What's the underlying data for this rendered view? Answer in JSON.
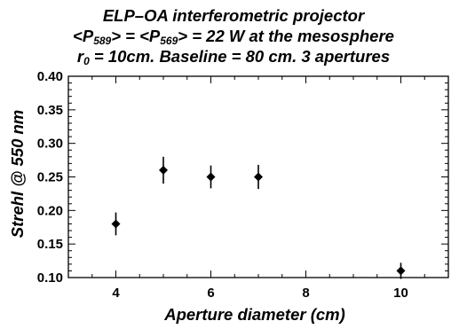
{
  "title": {
    "line1": "ELP–OA interferometric projector",
    "line2_pre": "<P",
    "line2_sub1": "589",
    "line2_mid": "> = <P",
    "line2_sub2": "569",
    "line2_post": "> = 22 W at the mesosphere",
    "line3_pre": "r",
    "line3_sub": "0",
    "line3_post": " = 10cm. Baseline = 80 cm. 3 apertures"
  },
  "chart_data": {
    "type": "scatter",
    "xlabel": "Aperture diameter (cm)",
    "ylabel": "Strehl  @ 550 nm",
    "xlim": [
      3,
      11
    ],
    "ylim": [
      0.1,
      0.4
    ],
    "xticks": [
      4,
      6,
      8,
      10
    ],
    "yticks": [
      0.1,
      0.15,
      0.2,
      0.25,
      0.3,
      0.35,
      0.4
    ],
    "ytick_labels": [
      "0.10",
      "0.15",
      "0.20",
      "0.25",
      "0.30",
      "0.35",
      "0.40"
    ],
    "grid": false,
    "marker": "diamond",
    "color": "#000000",
    "points": [
      {
        "x": 4,
        "y": 0.18,
        "err": 0.017
      },
      {
        "x": 5,
        "y": 0.26,
        "err": 0.02
      },
      {
        "x": 6,
        "y": 0.25,
        "err": 0.017
      },
      {
        "x": 7,
        "y": 0.25,
        "err": 0.018
      },
      {
        "x": 10,
        "y": 0.11,
        "err": 0.012
      }
    ]
  }
}
